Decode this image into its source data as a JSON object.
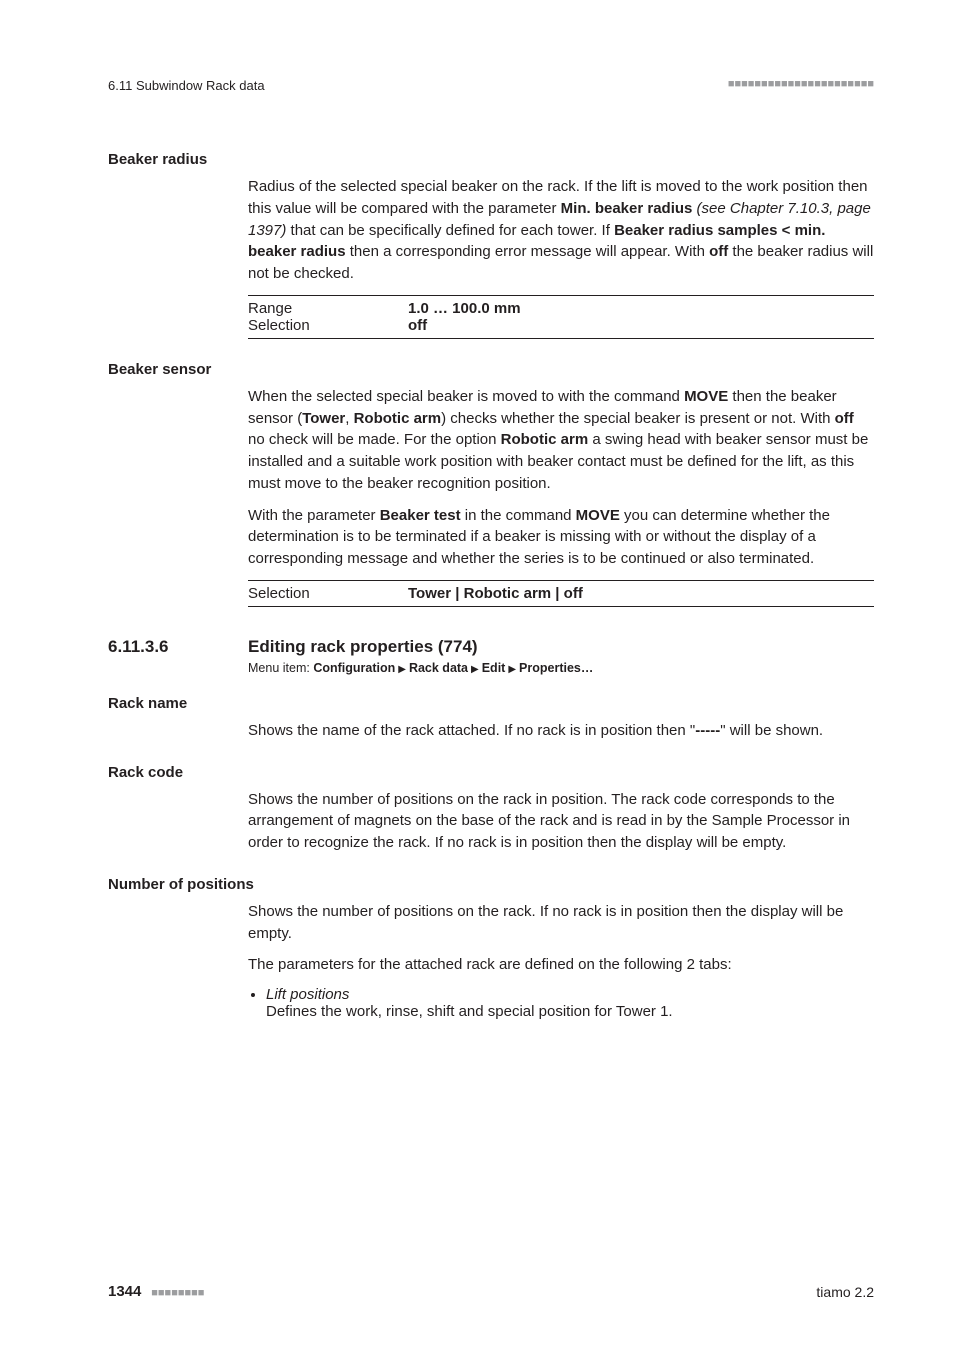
{
  "runningHead": {
    "left": "6.11  Subwindow Rack data",
    "rightDots": "■■■■■■■■■■■■■■■■■■■■■■"
  },
  "beakerRadius": {
    "label": "Beaker radius",
    "para": {
      "t1": "Radius of the selected special beaker on the rack. If the lift is moved to the work position then this value will be compared with the parameter ",
      "b1": "Min. beaker radius",
      "i1": " (see Chapter 7.10.3, page 1397)",
      "t2": " that can be specifically defined for each tower. If ",
      "b2": "Beaker radius samples < min. beaker radius",
      "t3": " then a corresponding error message will appear. With ",
      "b3": "off",
      "t4": " the beaker radius will not be checked."
    },
    "table": {
      "rangeLabel": "Range",
      "rangeValue": "1.0 … 100.0 mm",
      "selLabel": "Selection",
      "selValue": "off"
    }
  },
  "beakerSensor": {
    "label": "Beaker sensor",
    "p1": {
      "t1": "When the selected special beaker is moved to with the command ",
      "b1": "MOVE",
      "t2": " then the beaker sensor (",
      "b2": "Tower",
      "t3": ", ",
      "b3": "Robotic arm",
      "t4": ") checks whether the special beaker is present or not. With ",
      "b4": "off",
      "t5": " no check will be made. For the option ",
      "b5": "Robotic arm",
      "t6": " a swing head with beaker sensor must be installed and a suitable work position with beaker contact must be defined for the lift, as this must move to the beaker recognition position."
    },
    "p2": {
      "t1": "With the parameter ",
      "b1": "Beaker test",
      "t2": " in the command ",
      "b2": "MOVE",
      "t3": " you can determine whether the determination is to be terminated if a beaker is missing with or without the display of a corresponding message and whether the series is to be continued or also terminated."
    },
    "table": {
      "selLabel": "Selection",
      "v1": "Tower",
      "v2": "Robotic arm",
      "v3": "off"
    }
  },
  "heading": {
    "num": "6.11.3.6",
    "title": "Editing rack properties (774)",
    "menuPrefix": "Menu item: ",
    "m1": "Configuration",
    "m2": "Rack data",
    "m3": "Edit",
    "m4": "Properties…"
  },
  "rackName": {
    "label": "Rack name",
    "t1": "Shows the name of the rack attached. If no rack is in position then \"",
    "b1": "-----",
    "t2": "\" will be shown."
  },
  "rackCode": {
    "label": "Rack code",
    "t1": "Shows the number of positions on the rack in position. The rack code corresponds to the arrangement of magnets on the base of the rack and is read in by the Sample Processor in order to recognize the rack. If no rack is in position then the display will be empty."
  },
  "numPos": {
    "label": "Number of positions",
    "t1": "Shows the number of positions on the rack. If no rack is in position then the display will be empty.",
    "t2": "The parameters for the attached rack are defined on the following 2 tabs:",
    "li1t": "Lift positions",
    "li1d": "Defines the work, rinse, shift and special position for Tower 1."
  },
  "footer": {
    "page": "1344",
    "dots": "■■■■■■■■",
    "right": "tiamo 2.2"
  }
}
